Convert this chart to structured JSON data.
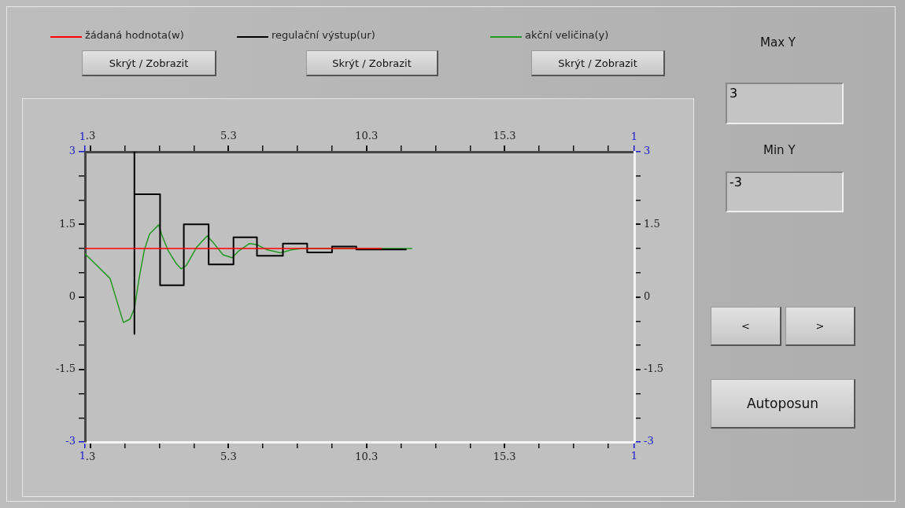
{
  "chart_data": {
    "type": "line",
    "legend": "top",
    "xlim": [
      0.1,
      20
    ],
    "xticks": [
      {
        "value": 0.1,
        "label": null
      },
      {
        "value": 0.3,
        "label": ".3"
      },
      {
        "value": 1.55,
        "label": null
      },
      {
        "value": 2.8,
        "label": null
      },
      {
        "value": 4.05,
        "label": null
      },
      5.3,
      {
        "value": 6.55,
        "label": null
      },
      {
        "value": 7.8,
        "label": null
      },
      {
        "value": 9.05,
        "label": null
      },
      10.3,
      {
        "value": 11.55,
        "label": null
      },
      {
        "value": 12.8,
        "label": null
      },
      {
        "value": 14.05,
        "label": null
      },
      15.3,
      {
        "value": 16.55,
        "label": null
      },
      {
        "value": 17.8,
        "label": null
      },
      {
        "value": 19.05,
        "label": null
      },
      {
        "value": 20,
        "label": null
      }
    ],
    "x2lim": [
      0.1,
      20
    ],
    "x2ticks": [
      {
        "value": 0.1,
        "label": null
      },
      {
        "value": 0.3,
        "label": ".3"
      },
      {
        "value": 1.55,
        "label": null
      },
      {
        "value": 2.8,
        "label": null
      },
      {
        "value": 4.05,
        "label": null
      },
      5.3,
      {
        "value": 6.55,
        "label": null
      },
      {
        "value": 7.8,
        "label": null
      },
      {
        "value": 9.05,
        "label": null
      },
      10.3,
      {
        "value": 11.55,
        "label": null
      },
      {
        "value": 12.8,
        "label": null
      },
      {
        "value": 14.05,
        "label": null
      },
      15.3,
      {
        "value": 16.55,
        "label": null
      },
      {
        "value": 17.8,
        "label": null
      },
      {
        "value": 19.05,
        "label": null
      },
      {
        "value": 20,
        "label": null
      }
    ],
    "ylim": [
      -3,
      3
    ],
    "yticks": [
      -3,
      {
        "value": -2.5,
        "label": null
      },
      {
        "value": -2,
        "label": null
      },
      -1.5,
      {
        "value": -1,
        "label": null
      },
      {
        "value": -0.5,
        "label": null
      },
      0,
      {
        "value": 0.5,
        "label": null
      },
      {
        "value": 1,
        "label": null
      },
      1.5,
      {
        "value": 2,
        "label": null
      },
      {
        "value": 2.5,
        "label": null
      },
      3
    ],
    "y2lim": [
      -3,
      3
    ],
    "y2ticks": [
      -3,
      {
        "value": -2.5,
        "label": null
      },
      {
        "value": -2,
        "label": null
      },
      -1.5,
      {
        "value": -1,
        "label": null
      },
      {
        "value": -0.5,
        "label": null
      },
      0,
      {
        "value": 0.5,
        "label": null
      },
      {
        "value": 1,
        "label": null
      },
      1.5,
      {
        "value": 2,
        "label": null
      },
      {
        "value": 2.5,
        "label": null
      },
      3
    ],
    "marker": "none",
    "series": [
      {
        "name": "žádaná hodnota(w)",
        "type": "line",
        "color": "#ff0000",
        "x": [
          0.1,
          10.85
        ],
        "values": [
          1,
          1
        ]
      },
      {
        "name": "regulační výstup(ur)",
        "type": "step",
        "color": "#000000",
        "x": [
          1.89,
          1.89,
          2.82,
          3.68,
          4.58,
          5.48,
          6.33,
          7.27,
          8.15,
          9.05,
          9.93,
          10.85,
          11.75
        ],
        "values": [
          3,
          -0.77,
          2.12,
          0.24,
          1.5,
          0.67,
          1.23,
          0.85,
          1.1,
          0.92,
          1.04,
          0.98,
          0.98
        ]
      },
      {
        "name": "akční veličina(y)",
        "type": "line",
        "color": "#1f9a1f",
        "x": [
          0.1,
          1.01,
          1.49,
          1.73,
          1.89,
          2.06,
          2.25,
          2.44,
          2.77,
          2.87,
          3.1,
          3.39,
          3.58,
          3.77,
          4.15,
          4.53,
          4.72,
          5.1,
          5.43,
          5.67,
          6.05,
          6.33,
          6.71,
          7.19,
          7.57,
          7.95,
          11.95
        ],
        "values": [
          0.89,
          0.38,
          -0.53,
          -0.46,
          -0.24,
          0.38,
          0.97,
          1.3,
          1.49,
          1.3,
          0.97,
          0.7,
          0.58,
          0.65,
          1.03,
          1.26,
          1.14,
          0.87,
          0.81,
          0.95,
          1.1,
          1.08,
          0.97,
          0.91,
          0.97,
          1.0,
          1.0
        ]
      }
    ],
    "annotations": [
      "Skrýt / Zobrazit",
      "Skrýt / Zobrazit",
      "Skrýt / Zobrazit",
      "Max Y",
      "3",
      "Min Y",
      "-3",
      "<",
      ">",
      "Autoposun",
      "1",
      "1",
      "1",
      "1"
    ]
  }
}
